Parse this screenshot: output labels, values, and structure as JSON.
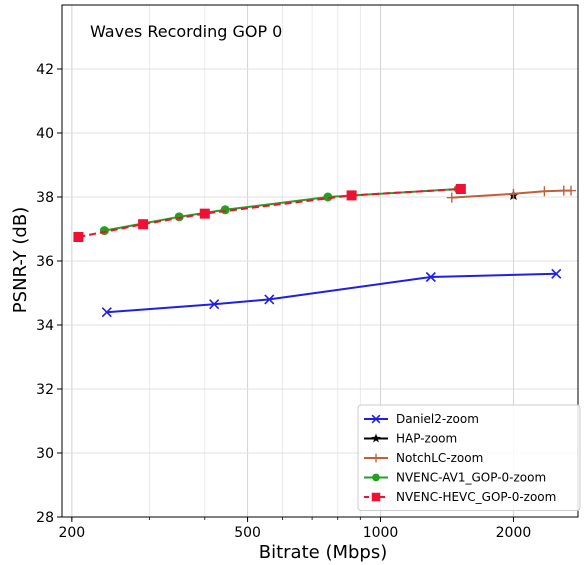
{
  "chart_data": {
    "type": "line",
    "title": "Waves Recording GOP 0",
    "xlabel": "Bitrate (Mbps)",
    "ylabel": "PSNR-Y (dB)",
    "x_scale": "log",
    "xlim": [
      190,
      2800
    ],
    "ylim": [
      28,
      44
    ],
    "x_ticks": [
      200,
      500,
      1000,
      2000
    ],
    "x_tick_labels": [
      "200",
      "500",
      "1000",
      "2000"
    ],
    "y_ticks": [
      28,
      30,
      32,
      34,
      36,
      38,
      40,
      42
    ],
    "y_tick_labels": [
      "28",
      "30",
      "32",
      "34",
      "36",
      "38",
      "40",
      "42"
    ],
    "grid": true,
    "legend_position": "bottom-right",
    "series": [
      {
        "name": "Daniel2-zoom",
        "color": "#1f1fe6",
        "marker": "x",
        "linestyle": "solid",
        "x": [
          240,
          420,
          560,
          1300,
          2500
        ],
        "y": [
          34.4,
          34.65,
          34.8,
          35.5,
          35.6
        ]
      },
      {
        "name": "HAP-zoom",
        "color": "#000000",
        "marker": "star",
        "linestyle": "solid",
        "x": [
          2000
        ],
        "y": [
          38.05
        ]
      },
      {
        "name": "NotchLC-zoom",
        "color": "#c0603a",
        "marker": "plus",
        "linestyle": "solid",
        "x": [
          1450,
          2000,
          2350,
          2600,
          2700
        ],
        "y": [
          37.98,
          38.1,
          38.18,
          38.2,
          38.2
        ]
      },
      {
        "name": "NVENC-AV1_GOP-0-zoom",
        "color": "#22a022",
        "marker": "circle",
        "linestyle": "solid",
        "x": [
          237,
          350,
          445,
          760,
          1500
        ],
        "y": [
          36.95,
          37.38,
          37.6,
          38.0,
          38.25
        ]
      },
      {
        "name": "NVENC-HEVC_GOP-0-zoom",
        "color": "#ee1133",
        "marker": "square",
        "linestyle": "dashed",
        "x": [
          207,
          290,
          400,
          860,
          1520
        ],
        "y": [
          36.75,
          37.15,
          37.48,
          38.05,
          38.25
        ]
      }
    ]
  }
}
